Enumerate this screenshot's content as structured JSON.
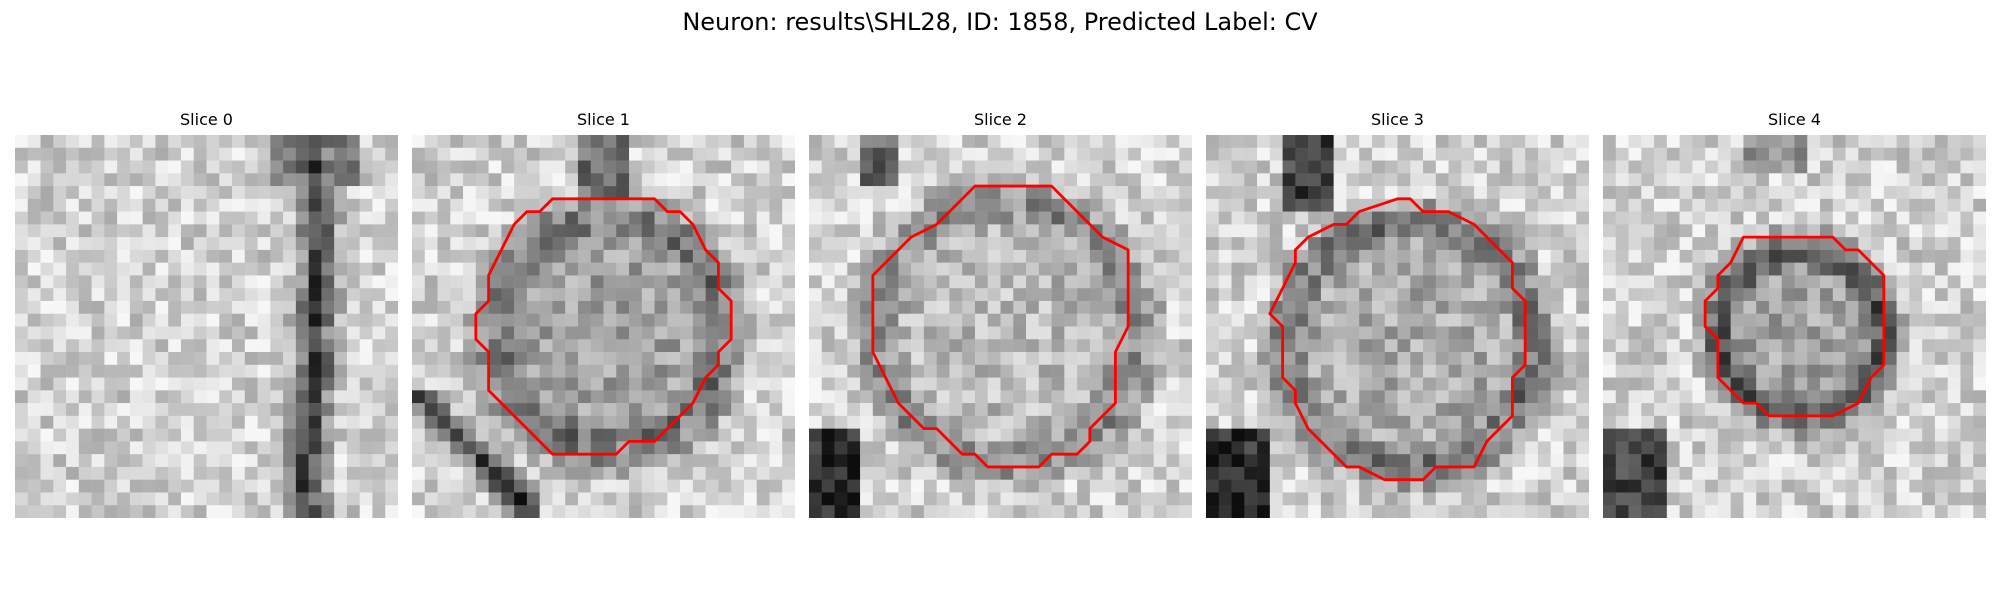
{
  "figure": {
    "title": "Neuron: results\\SHL28, ID: 1858, Predicted Label: CV",
    "contour_color": "#ff0000",
    "colormap": "gray",
    "panels": [
      {
        "title": "Slice 0",
        "has_contour": false
      },
      {
        "title": "Slice 1",
        "has_contour": true
      },
      {
        "title": "Slice 2",
        "has_contour": true
      },
      {
        "title": "Slice 3",
        "has_contour": true
      },
      {
        "title": "Slice 4",
        "has_contour": true
      }
    ]
  }
}
